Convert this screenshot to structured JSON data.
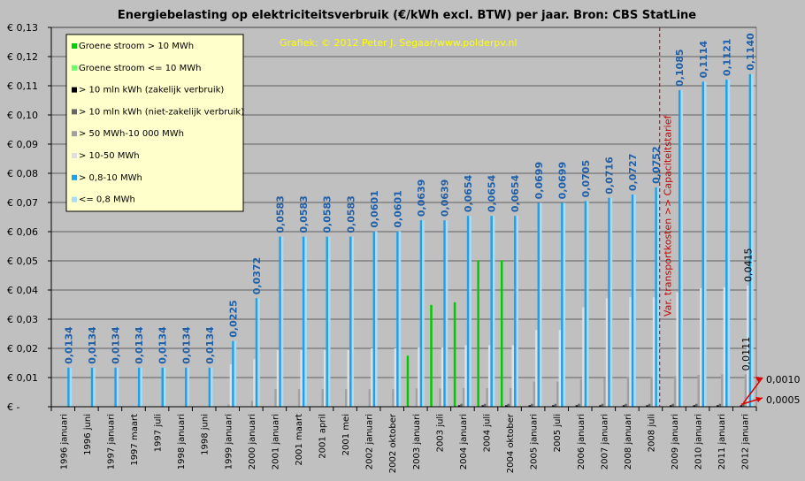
{
  "chart_data": {
    "type": "bar",
    "title": "Energiebelasting op elektriciteitsverbruik (€/kWh excl. BTW) per jaar. Bron: CBS StatLine",
    "credit": "Grafiek: © 2012 Peter J. Segaar/www.polderpv.nl",
    "annotation": "Var. transportkosten >> Capaciteitstarief",
    "ylim": [
      0,
      0.13
    ],
    "y_ticks": [
      {
        "v": 0,
        "label": "€ -"
      },
      {
        "v": 0.01,
        "label": "€ 0,01"
      },
      {
        "v": 0.02,
        "label": "€ 0,02"
      },
      {
        "v": 0.03,
        "label": "€ 0,03"
      },
      {
        "v": 0.04,
        "label": "€ 0,04"
      },
      {
        "v": 0.05,
        "label": "€ 0,05"
      },
      {
        "v": 0.06,
        "label": "€ 0,06"
      },
      {
        "v": 0.07,
        "label": "€ 0,07"
      },
      {
        "v": 0.08,
        "label": "€ 0,08"
      },
      {
        "v": 0.09,
        "label": "€ 0,09"
      },
      {
        "v": 0.1,
        "label": "€ 0,10"
      },
      {
        "v": 0.11,
        "label": "€ 0,11"
      },
      {
        "v": 0.12,
        "label": "€ 0,12"
      },
      {
        "v": 0.13,
        "label": "€ 0,13"
      }
    ],
    "categories": [
      "1996 januari",
      "1996 juni",
      "1997 januari",
      "1997 maart",
      "1997 juli",
      "1998 januari",
      "1998 juni",
      "1999 januari",
      "2000 januari",
      "2001 januari",
      "2001 maart",
      "2001 april",
      "2001 mei",
      "2002 januari",
      "2002 oktober",
      "2003 januari",
      "2003 juli",
      "2004 januari",
      "2004 juli",
      "2004 oktober",
      "2005 januari",
      "2005 juli",
      "2006 januari",
      "2007 januari",
      "2008 januari",
      "2008 juli",
      "2009 januari",
      "2010 januari",
      "2011 januari",
      "2012 januari"
    ],
    "series": [
      {
        "name": "Groene stroom > 10 MWh",
        "color": "#00cc00",
        "values": [
          0,
          0,
          0,
          0,
          0,
          0,
          0,
          0,
          0,
          0,
          0,
          0,
          0,
          0,
          0,
          0.0175,
          0.0349,
          0.0358,
          0.0502,
          0.0502,
          0,
          0,
          0,
          0,
          0,
          0,
          0,
          0,
          0,
          0
        ]
      },
      {
        "name": "Groene stroom <= 10 MWh",
        "color": "#66ff66",
        "values": [
          0,
          0,
          0,
          0,
          0,
          0,
          0,
          0,
          0,
          0,
          0,
          0,
          0,
          0,
          0,
          0,
          0,
          0,
          0,
          0,
          0,
          0,
          0,
          0,
          0,
          0,
          0,
          0,
          0,
          0
        ]
      },
      {
        "name": "> 10 mln kWh (zakelijk verbruik)",
        "color": "#000000",
        "values": [
          0,
          0,
          0,
          0,
          0,
          0,
          0,
          0,
          0,
          0,
          0,
          0,
          0,
          0,
          0,
          0,
          0,
          0.0005,
          0.0005,
          0.0005,
          0.0005,
          0.0005,
          0.0005,
          0.0005,
          0.0005,
          0.0005,
          0.0005,
          0.0005,
          0.0005,
          0.0005
        ]
      },
      {
        "name": "> 10 mln kWh (niet-zakelijk verbruik)",
        "color": "#666666",
        "values": [
          0,
          0,
          0,
          0,
          0,
          0,
          0,
          0,
          0,
          0,
          0,
          0,
          0,
          0,
          0,
          0,
          0,
          0.001,
          0.001,
          0.001,
          0.001,
          0.001,
          0.001,
          0.001,
          0.001,
          0.001,
          0.001,
          0.001,
          0.001,
          0.001
        ]
      },
      {
        "name": "> 50 MWh-10 000 MWh",
        "color": "#a0a0a0",
        "values": [
          0,
          0,
          0,
          0,
          0,
          0,
          0,
          0.0008,
          0.002,
          0.006,
          0.006,
          0.006,
          0.006,
          0.006,
          0.006,
          0.0063,
          0.0063,
          0.0064,
          0.0064,
          0.0064,
          0.0086,
          0.0086,
          0.0094,
          0.0099,
          0.0102,
          0.0102,
          0.0105,
          0.0109,
          0.0111,
          0.0111
        ]
      },
      {
        "name": "> 10-50 MWh",
        "color": "#e0e0e0",
        "values": [
          0,
          0,
          0,
          0,
          0,
          0,
          0,
          0.0146,
          0.0163,
          0.0194,
          0.0194,
          0.0194,
          0.0194,
          0.02,
          0.02,
          0.0203,
          0.0203,
          0.0211,
          0.0211,
          0.0211,
          0.0263,
          0.0263,
          0.0341,
          0.0372,
          0.0375,
          0.0375,
          0.0392,
          0.0406,
          0.041,
          0.0415
        ]
      },
      {
        "name": "> 0,8-10 MWh",
        "color": "#1fa0e8",
        "values": [
          0.0134,
          0.0134,
          0.0134,
          0.0134,
          0.0134,
          0.0134,
          0.0134,
          0.0225,
          0.0372,
          0.0583,
          0.0583,
          0.0583,
          0.0583,
          0.0601,
          0.0601,
          0.0639,
          0.0639,
          0.0654,
          0.0654,
          0.0654,
          0.0699,
          0.0699,
          0.0705,
          0.0716,
          0.0727,
          0.0752,
          0.1085,
          0.1114,
          0.1121,
          0.114
        ]
      },
      {
        "name": "<= 0,8 MWh",
        "color": "#a8dcf8",
        "values": [
          0.0134,
          0.0134,
          0.0134,
          0.0134,
          0.0134,
          0.0134,
          0.0134,
          0.0225,
          0.0372,
          0.0583,
          0.0583,
          0.0583,
          0.0583,
          0.0601,
          0.0601,
          0.0639,
          0.0639,
          0.0654,
          0.0654,
          0.0654,
          0.0699,
          0.0699,
          0.0705,
          0.0716,
          0.0727,
          0.0752,
          0.1085,
          0.1114,
          0.1121,
          0.114
        ]
      }
    ],
    "data_labels": [
      "0,0134",
      "0,0134",
      "0,0134",
      "0,0134",
      "0,0134",
      "0,0134",
      "0,0134",
      "0,0225",
      "0,0372",
      "0,0583",
      "0,0583",
      "0,0583",
      "0,0583",
      "0,0601",
      "0,0601",
      "0,0639",
      "0,0639",
      "0,0654",
      "0,0654",
      "0,0654",
      "0,0699",
      "0,0699",
      "0,0705",
      "0,0716",
      "0,0727",
      "0,0752",
      "0,1085",
      "0,1114",
      "0,1121",
      "0,1140"
    ],
    "extra_labels": [
      {
        "category_index": 29,
        "series": "> 10-50 MWh",
        "text": "0,0415"
      },
      {
        "category_index": 29,
        "series": "> 50 MWh-10 000 MWh",
        "text": "0,0111"
      },
      {
        "category_index": 29,
        "series": "> 10 mln kWh (niet-zakelijk verbruik)",
        "text": "0,0010"
      },
      {
        "category_index": 29,
        "series": "> 10 mln kWh (zakelijk verbruik)",
        "text": "0,0005"
      }
    ],
    "legend_position": "top-left",
    "grid": true,
    "colors": {
      "background": "#c0c0c0",
      "plot_background": "#c0c0c0",
      "legend_background": "#ffffcc",
      "credit": "#ffff00",
      "data_label": "#1f5fa8",
      "annotation": "#cc0000"
    }
  }
}
